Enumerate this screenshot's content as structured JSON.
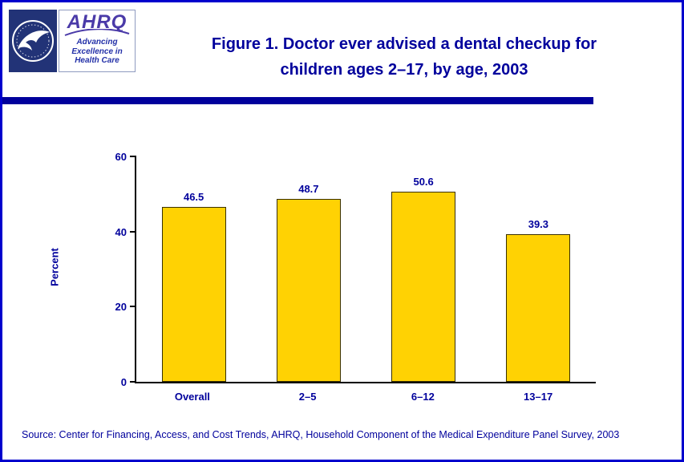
{
  "header": {
    "title_line1": "Figure 1. Doctor ever advised a dental checkup for",
    "title_line2": "children ages 2–17, by age, 2003",
    "logo": {
      "ahrq_text": "AHRQ",
      "tagline_line1": "Advancing",
      "tagline_line2": "Excellence in",
      "tagline_line3": "Health Care"
    }
  },
  "chart_data": {
    "type": "bar",
    "title": "Figure 1. Doctor ever advised a dental checkup for children ages 2–17, by age, 2003",
    "categories": [
      "Overall",
      "2–5",
      "6–12",
      "13–17"
    ],
    "values": [
      46.5,
      48.7,
      50.6,
      39.3
    ],
    "xlabel": "",
    "ylabel": "Percent",
    "ylim": [
      0,
      60
    ],
    "yticks": [
      0,
      20,
      40,
      60
    ],
    "grid": false,
    "legend": "none",
    "bar_color": "#FFD203"
  },
  "colors": {
    "navy_text": "#00009C",
    "page_border": "#0000CD",
    "bar_fill": "#FFD203"
  },
  "footer": {
    "source": "Source: Center for Financing, Access, and Cost Trends, AHRQ, Household Component of the Medical Expenditure Panel Survey, 2003"
  }
}
